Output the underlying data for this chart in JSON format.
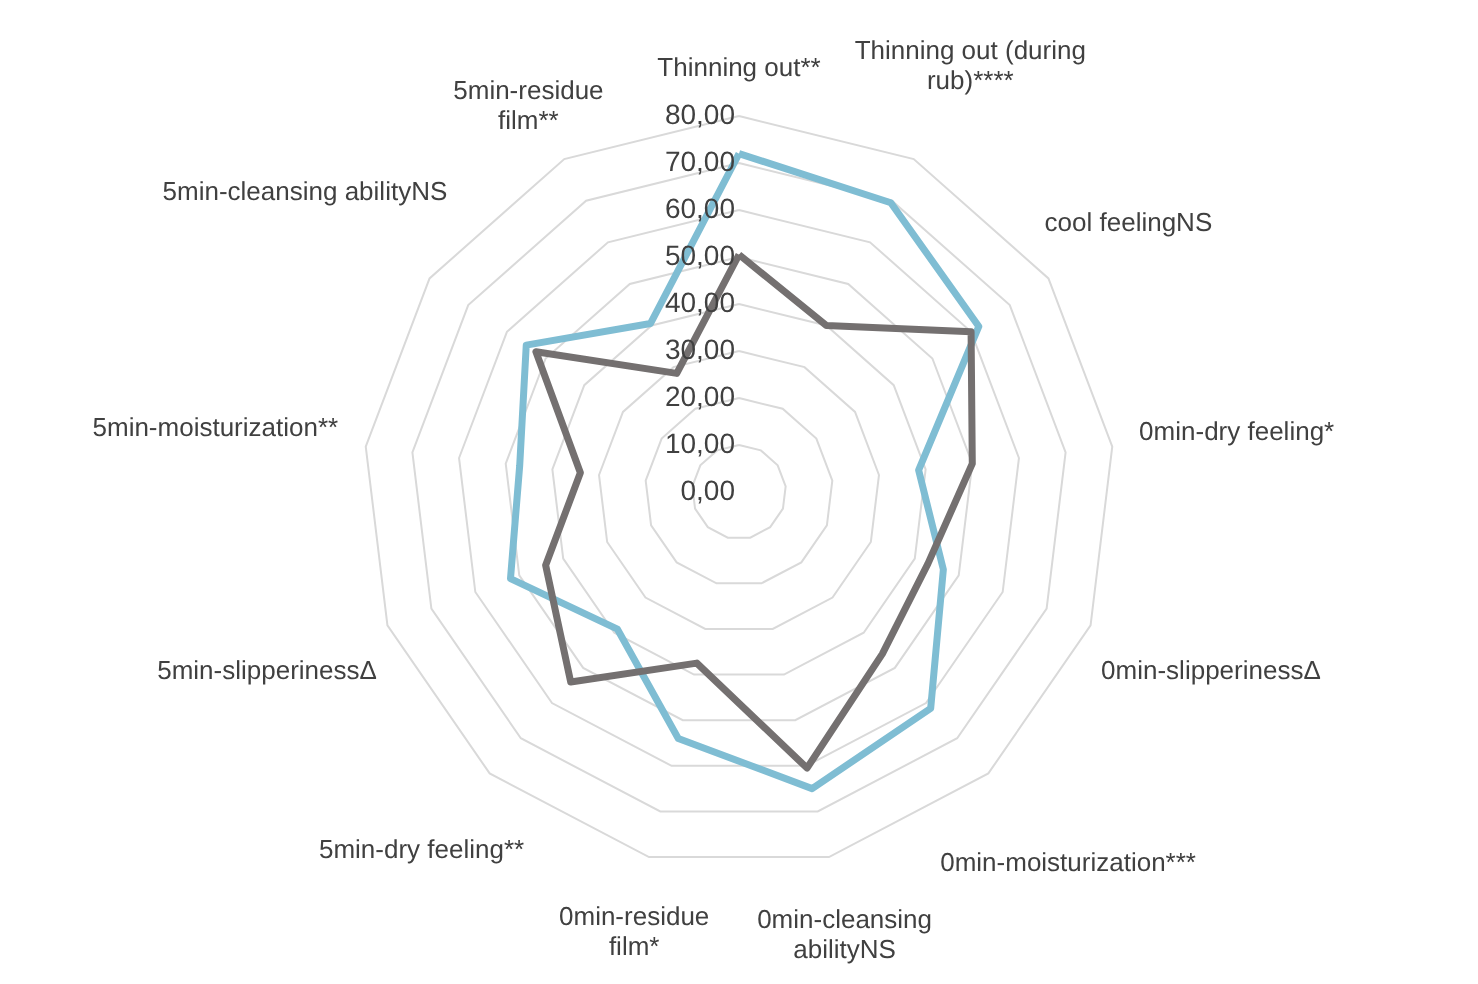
{
  "chart_data": {
    "type": "radar",
    "categories": [
      "Thinning out**",
      "Thinning out (during rub)****",
      "cool feelingNS",
      "0min-dry feeling*",
      "0min-slipperinessΔ",
      "0min-moisturization***",
      "0min-cleansing abilityNS",
      "0min-residue film*",
      "5min-dry feeling**",
      "5min-slipperinessΔ",
      "5min-moisturization**",
      "5min-cleansing abilityNS",
      "5min-residue film**"
    ],
    "series": [
      {
        "color": "#7fbdd3",
        "values": [
          72,
          69.5,
          62,
          38.5,
          46.5,
          61.5,
          65,
          54,
          39,
          52,
          47,
          55,
          40.5
        ]
      },
      {
        "color": "#747070",
        "values": [
          50.5,
          40,
          60,
          50,
          43,
          46,
          60.5,
          37.5,
          54,
          44,
          34,
          52.5,
          28.5
        ]
      }
    ],
    "ylim": [
      0,
      80
    ],
    "yticks": [
      {
        "value": 0,
        "label": "0,00"
      },
      {
        "value": 10,
        "label": "10,00"
      },
      {
        "value": 20,
        "label": "20,00"
      },
      {
        "value": 30,
        "label": "30,00"
      },
      {
        "value": 40,
        "label": "40,00"
      },
      {
        "value": 50,
        "label": "50,00"
      },
      {
        "value": 60,
        "label": "60,00"
      },
      {
        "value": 70,
        "label": "70,00"
      },
      {
        "value": 80,
        "label": "80,00"
      }
    ],
    "grid": true,
    "marker": "none",
    "line_style": "solid"
  }
}
